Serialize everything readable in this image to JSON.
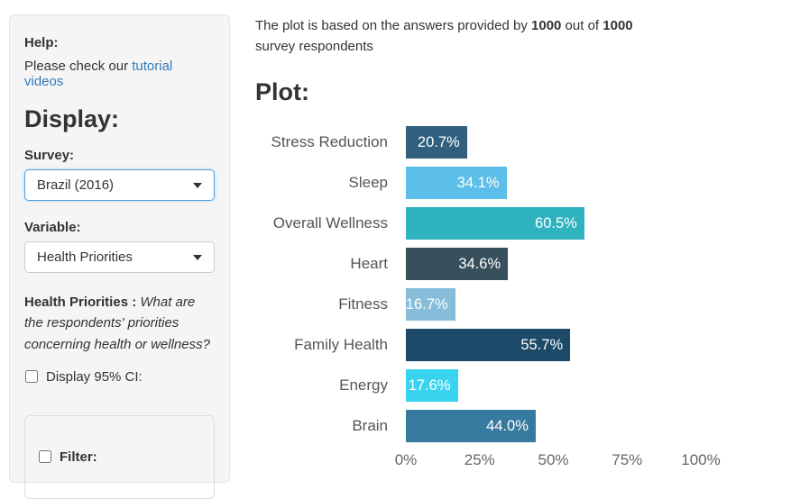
{
  "sidebar": {
    "help_label": "Help:",
    "help_text_prefix": "Please check our ",
    "help_link": "tutorial videos",
    "display_heading": "Display:",
    "survey_label": "Survey:",
    "survey_value": "Brazil (2016)",
    "variable_label": "Variable:",
    "variable_value": "Health Priorities",
    "description_bold": "Health Priorities :",
    "description_question": " What are the respondents' priorities concerning health or wellness?",
    "ci_checkbox_label": "Display 95% CI:",
    "filter_checkbox_label": "Filter:"
  },
  "main": {
    "intro_prefix": "The plot is based on the answers provided by ",
    "intro_count_answered": "1000",
    "intro_mid": " out of ",
    "intro_count_total": "1000",
    "intro_suffix": " survey respondents",
    "plot_heading": "Plot:"
  },
  "chart_data": {
    "type": "bar",
    "orientation": "horizontal",
    "categories": [
      "Stress Reduction",
      "Sleep",
      "Overall Wellness",
      "Heart",
      "Fitness",
      "Family Health",
      "Energy",
      "Brain"
    ],
    "values": [
      20.7,
      34.1,
      60.5,
      34.6,
      16.7,
      55.7,
      17.6,
      44.0
    ],
    "value_labels": [
      "20.7%",
      "34.1%",
      "60.5%",
      "34.6%",
      "16.7%",
      "55.7%",
      "17.6%",
      "44.0%"
    ],
    "bar_colors": [
      "#30607e",
      "#5bbfea",
      "#2fb3c0",
      "#37505c",
      "#87bdd9",
      "#1d4a69",
      "#38d4f0",
      "#37799f"
    ],
    "xlim": [
      0,
      100
    ],
    "x_ticks": [
      "0%",
      "25%",
      "50%",
      "75%",
      "100%"
    ],
    "x_tick_values": [
      0,
      25,
      50,
      75,
      100
    ],
    "grid": false,
    "legend": "none"
  },
  "colors": {
    "sidebar_bg": "#f5f5f5",
    "sidebar_border": "#e3e3e3",
    "link": "#3279b7",
    "focused_select_border": "#51a0e0",
    "bar_value_text": "#ffffff",
    "category_label_text": "#555555",
    "axis_label_text": "#666666"
  }
}
